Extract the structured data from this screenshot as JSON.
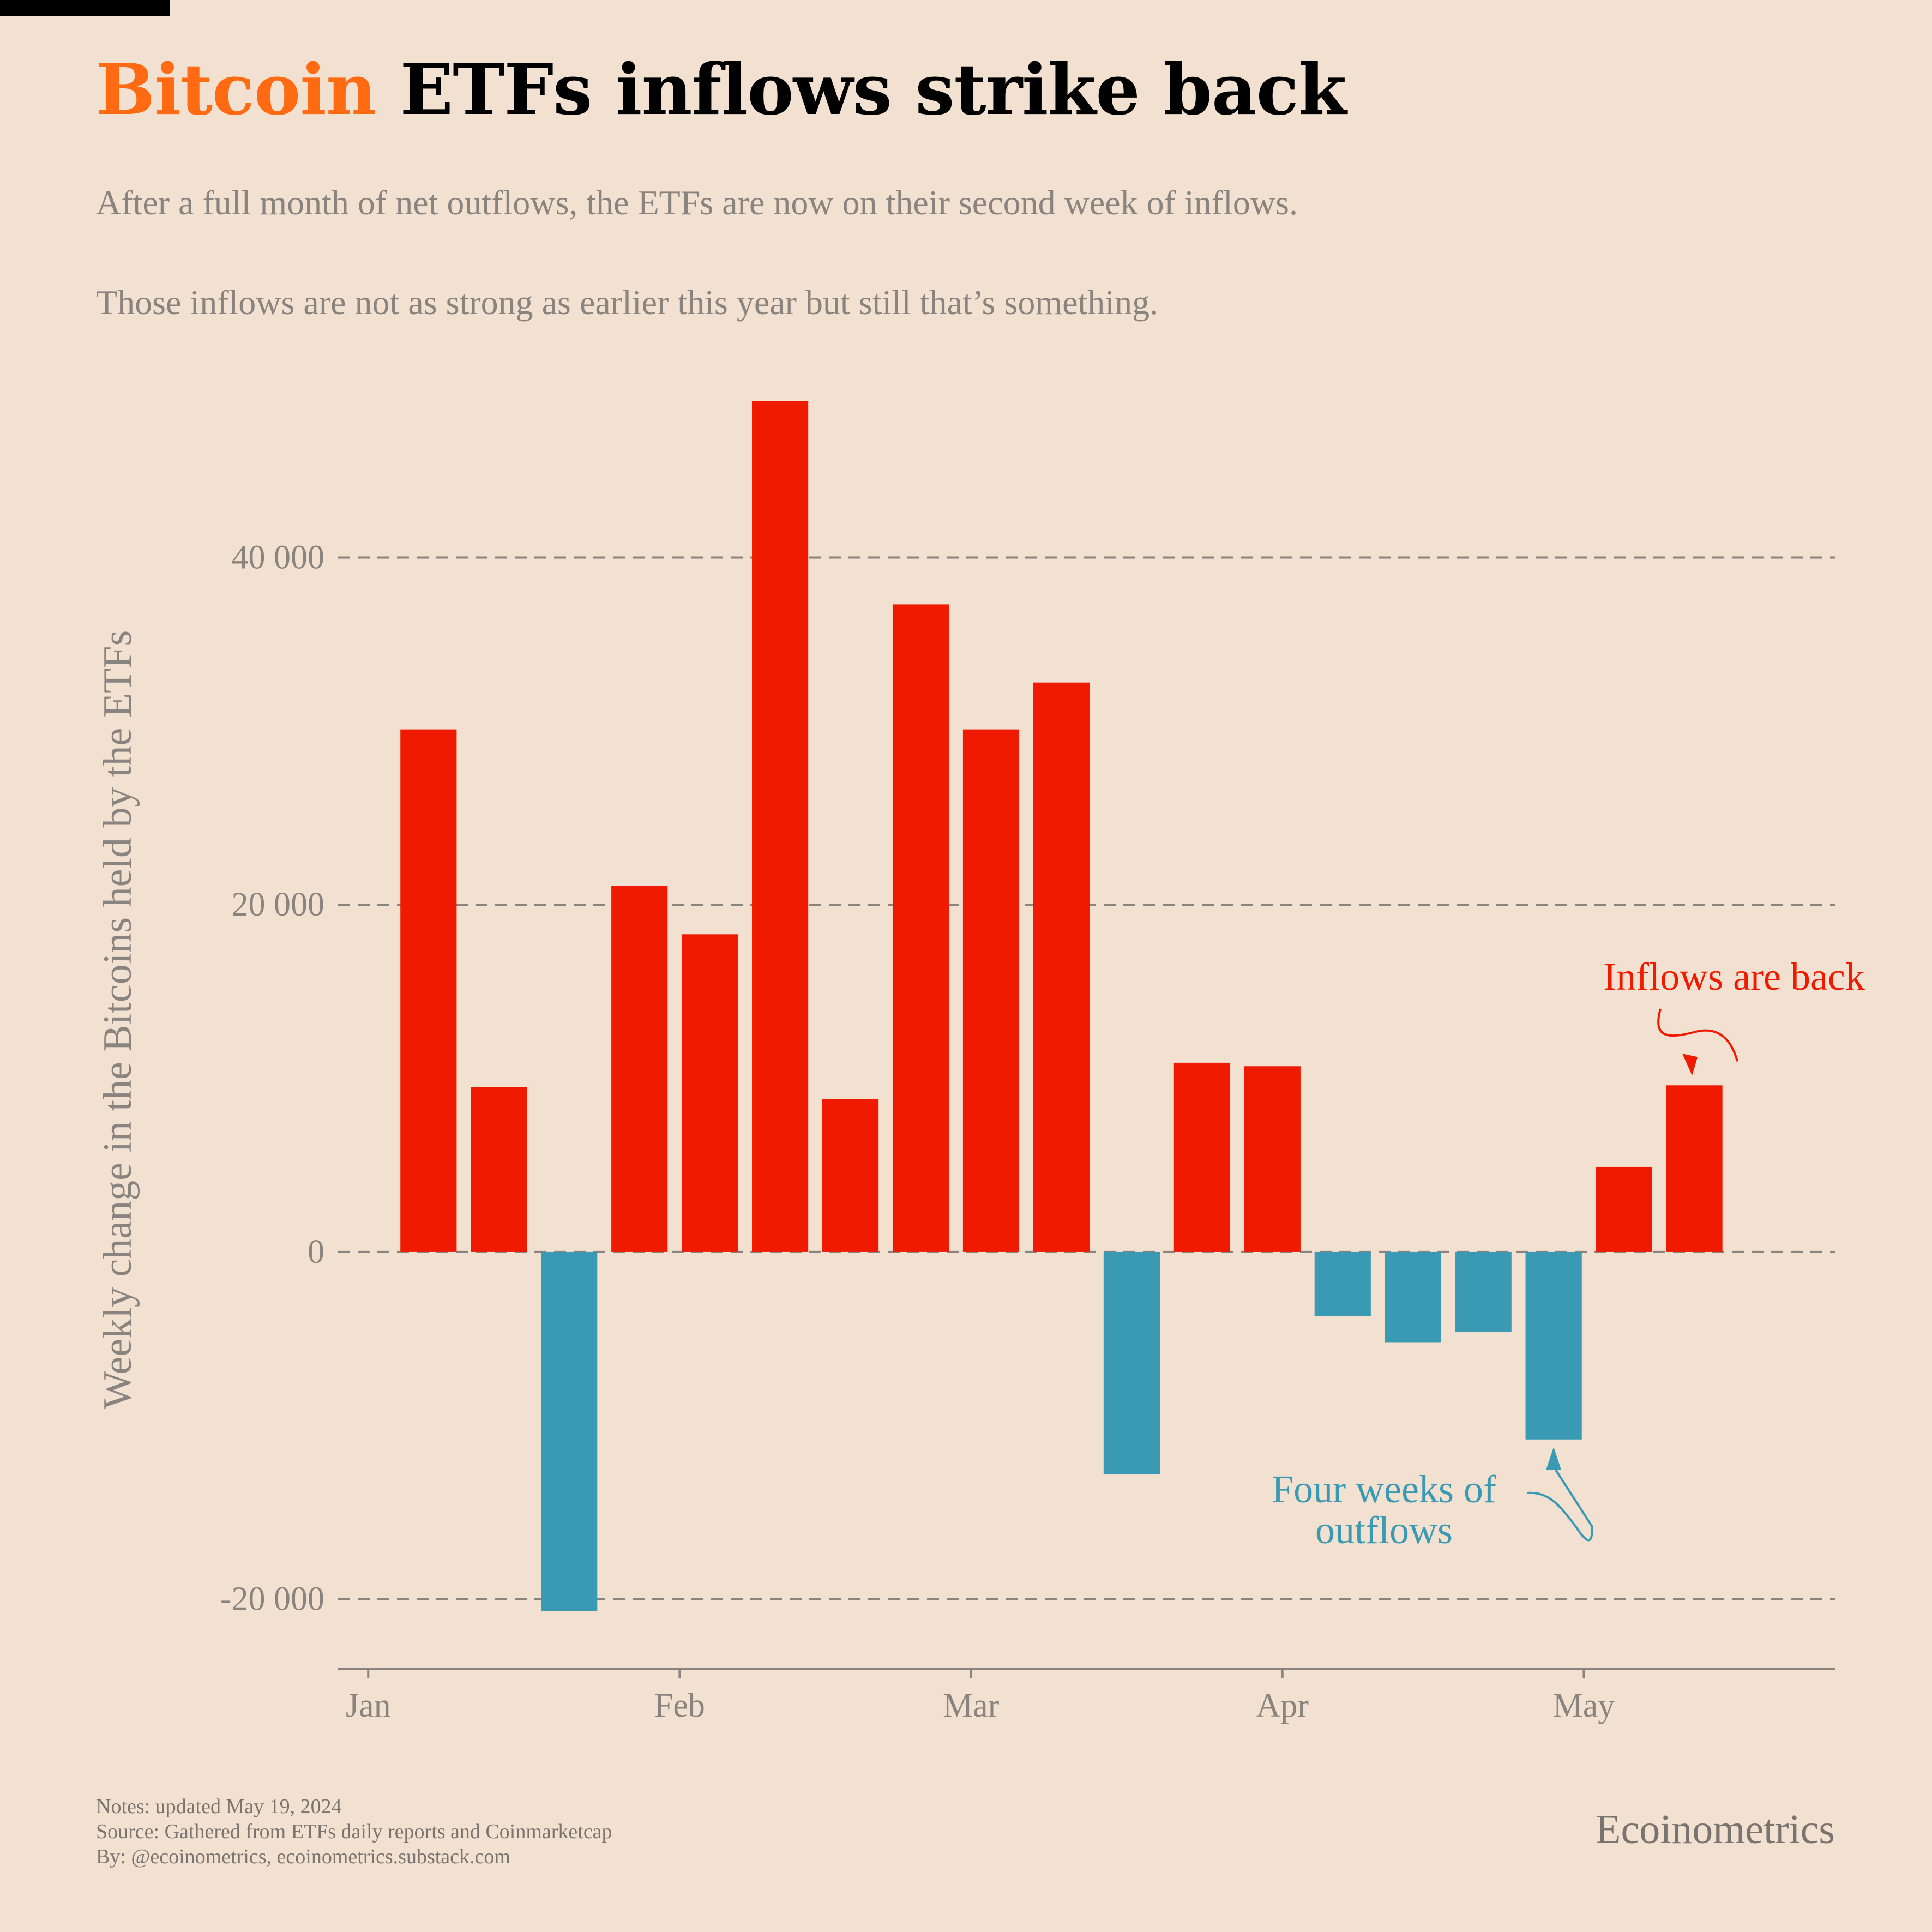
{
  "header": {
    "title_accent": "Bitcoin",
    "title_rest": " ETFs inflows strike back",
    "subtitle_1": "After a full month of net outflows, the ETFs are now on their second week of inflows.",
    "subtitle_2": "Those inflows are not as strong as earlier this year but still that’s something."
  },
  "colors": {
    "background": "#f2e0d0",
    "accent": "#ff6a13",
    "inflow": "#f01a00",
    "outflow": "#3a9ab3",
    "grid": "#8a8480",
    "text_muted": "#8a8480"
  },
  "chart_data": {
    "type": "bar",
    "ylabel": "Weekly change in the Bitcoins held by the ETFs",
    "xlabel": "",
    "ylim": [
      -24000,
      49500
    ],
    "yticks": [
      -20000,
      0,
      20000,
      40000
    ],
    "ytick_labels": [
      "-20 000",
      "0",
      "20 000",
      "40 000"
    ],
    "xlim": [
      "2023-12-29",
      "2024-05-26"
    ],
    "xticks": [
      "2024-01-01",
      "2024-02-01",
      "2024-03-01",
      "2024-04-01",
      "2024-05-01"
    ],
    "xtick_labels": [
      "Jan",
      "Feb",
      "Mar",
      "Apr",
      "May"
    ],
    "grid": "horizontal dashed",
    "series": [
      {
        "x": [
          "2024-01-07",
          "2024-01-14",
          "2024-01-21",
          "2024-01-28",
          "2024-02-04",
          "2024-02-11",
          "2024-02-18",
          "2024-02-25",
          "2024-03-03",
          "2024-03-10",
          "2024-03-17",
          "2024-03-24",
          "2024-03-31",
          "2024-04-07",
          "2024-04-14",
          "2024-04-21",
          "2024-04-28",
          "2024-05-05",
          "2024-05-12"
        ],
        "values": [
          30100,
          9500,
          -20700,
          21100,
          18300,
          49000,
          8800,
          37300,
          30100,
          32800,
          -12800,
          10900,
          10700,
          -3700,
          -5200,
          -4600,
          -10800,
          4900,
          9600
        ]
      }
    ],
    "annotations": [
      {
        "text": "Inflows are back",
        "target": "2024-05-12",
        "color": "#f01a00"
      },
      {
        "text_line_1": "Four weeks of",
        "text_line_2": "outflows",
        "target": "2024-04-28",
        "color": "#3a9ab3"
      }
    ]
  },
  "footer": {
    "notes_line_1": "Notes: updated May 19, 2024",
    "notes_line_2": "Source: Gathered from ETFs daily reports and Coinmarketcap",
    "notes_line_3": "By: @ecoinometrics, ecoinometrics.substack.com",
    "brand": "Ecoinometrics"
  }
}
